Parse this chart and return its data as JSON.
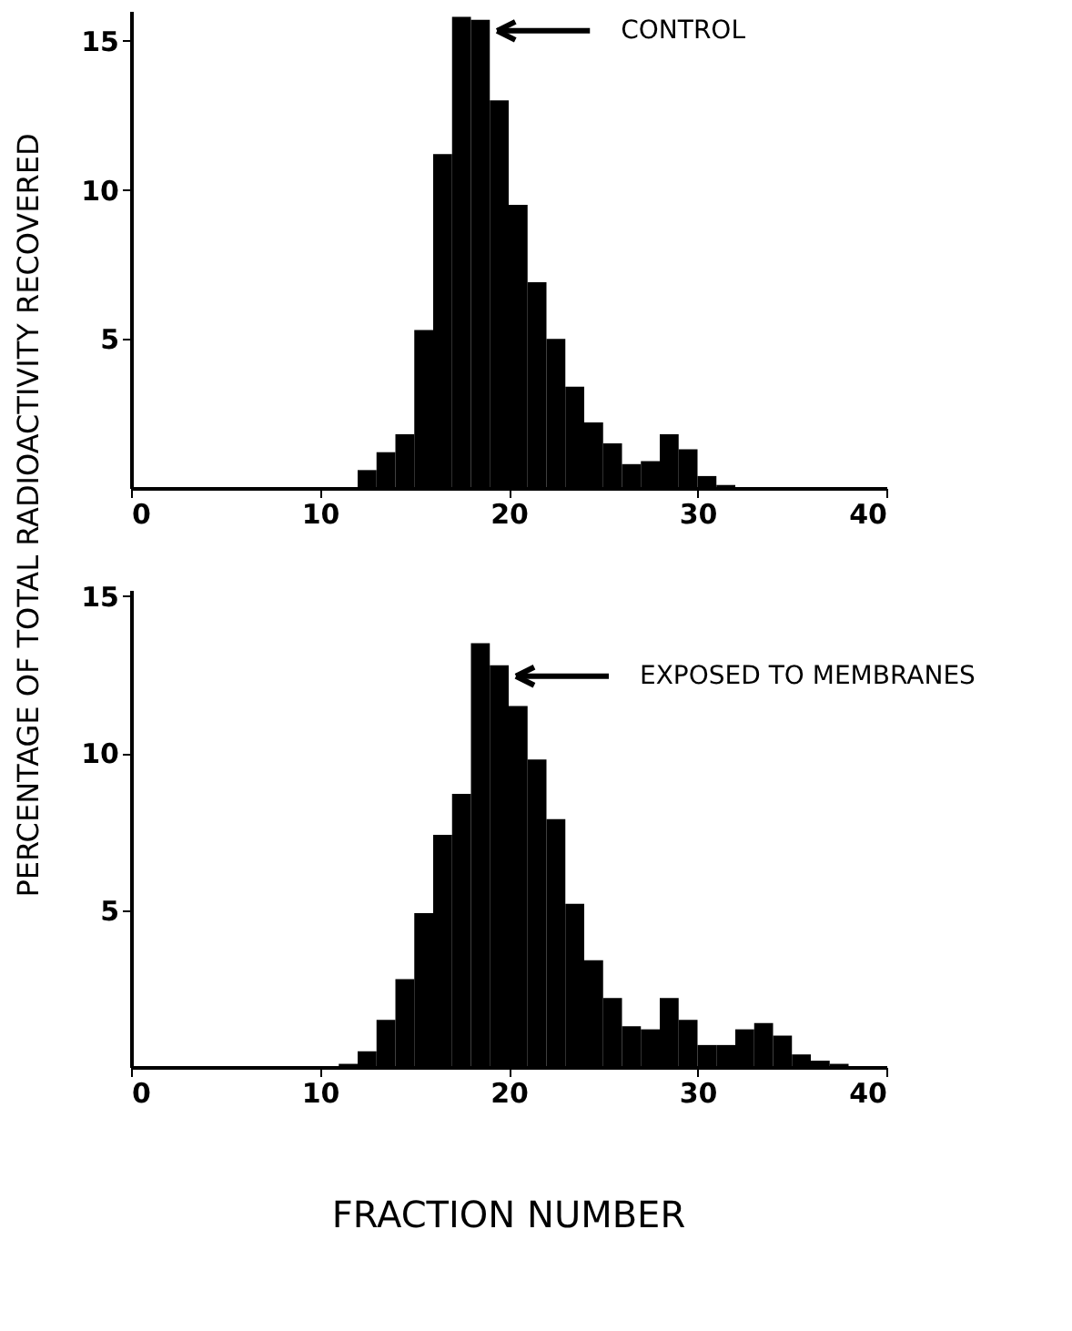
{
  "chart_data": [
    {
      "type": "histogram",
      "ylabel": "PERCENTAGE OF TOTAL RADIOACTIVITY RECOVERED",
      "color": "#000000",
      "bins": [
        12,
        13,
        14,
        15,
        16,
        17,
        18,
        19,
        20,
        21,
        22,
        23,
        24,
        25,
        26,
        27,
        28,
        29,
        30,
        31,
        32
      ],
      "values": [
        0.6,
        1.2,
        1.8,
        5.3,
        11.2,
        15.8,
        15.7,
        13.0,
        9.5,
        6.9,
        5.0,
        3.4,
        2.2,
        1.5,
        0.8,
        0.9,
        1.8,
        1.3,
        0.4,
        0.1
      ],
      "xlim": [
        0,
        40
      ],
      "xticks": [
        0,
        10,
        20,
        30,
        40
      ],
      "ylim": [
        0,
        16
      ],
      "yticks": [
        5,
        10,
        15
      ],
      "grid": false,
      "annotations": [
        "CONTROL"
      ]
    },
    {
      "type": "histogram",
      "xlabel": "FRACTION NUMBER",
      "color": "#000000",
      "bins": [
        11,
        12,
        13,
        14,
        15,
        16,
        17,
        18,
        19,
        20,
        21,
        22,
        23,
        24,
        25,
        26,
        27,
        28,
        29,
        30,
        31,
        32,
        33,
        34,
        35,
        36,
        37,
        38
      ],
      "values": [
        0.1,
        0.5,
        1.5,
        2.8,
        4.9,
        7.4,
        8.7,
        13.5,
        12.8,
        11.5,
        9.8,
        7.9,
        5.2,
        3.4,
        2.2,
        1.3,
        1.2,
        2.2,
        1.5,
        0.7,
        0.7,
        1.2,
        1.4,
        1.0,
        0.4,
        0.2,
        0.1
      ],
      "xlim": [
        0,
        40
      ],
      "xticks": [
        0,
        10,
        20,
        30,
        40
      ],
      "ylim": [
        0,
        15.2
      ],
      "yticks": [
        5,
        10,
        15
      ],
      "grid": false,
      "annotations": [
        "EXPOSED TO MEMBRANES"
      ]
    }
  ]
}
